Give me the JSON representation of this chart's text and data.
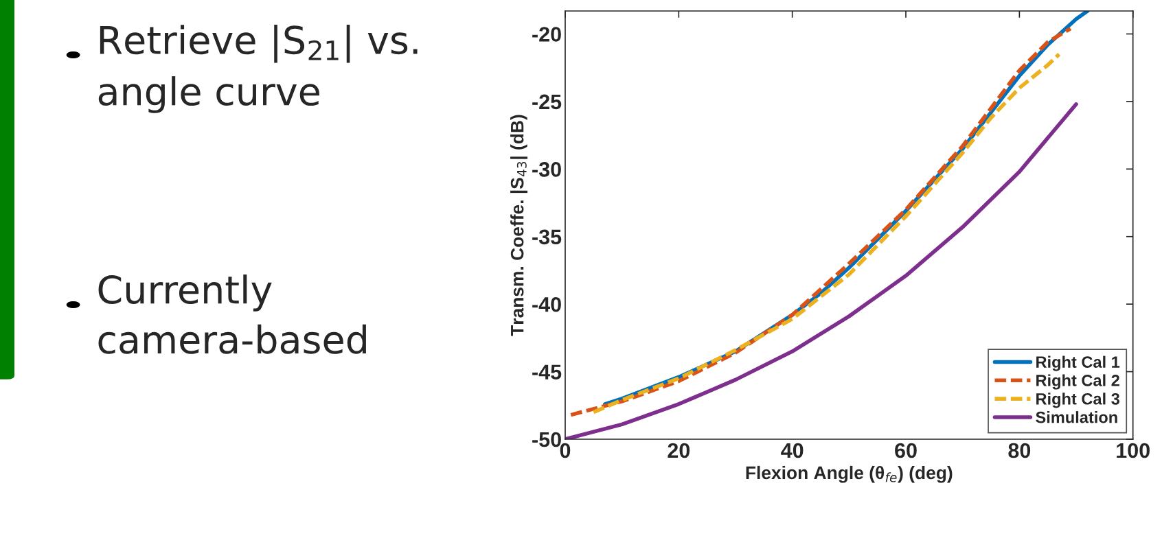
{
  "chart_data": {
    "type": "line",
    "xlabel": "Flexion Angle (θ$_{fe}$) (deg)",
    "ylabel": "Transm. Coeffe. |S$_{43}$| (dB)",
    "xlim": [
      0,
      100
    ],
    "xticks": [
      0,
      20,
      40,
      60,
      80,
      100
    ],
    "ylim": [
      -50,
      -18.3
    ],
    "yticks": [
      -50,
      -45,
      -40,
      -35,
      -30,
      -25,
      -20
    ],
    "grid": false,
    "legend": "bottom right",
    "marker": "none",
    "annotations": [
      "Retrieve |S$_{21}$| vs. angle curve",
      "Currently camera-based"
    ],
    "series": [
      {
        "name": "Right Cal 1",
        "color": "#0072bd",
        "line_style": "solid",
        "x": [
          7,
          10,
          20,
          30,
          40,
          45,
          50,
          55,
          60,
          65,
          70,
          75,
          80,
          85,
          90,
          92
        ],
        "values": [
          -47.4,
          -47.0,
          -45.4,
          -43.5,
          -40.8,
          -39.2,
          -37.3,
          -35.2,
          -33.1,
          -30.8,
          -28.5,
          -25.8,
          -23.1,
          -20.8,
          -18.9,
          -18.3
        ]
      },
      {
        "name": "Right Cal 2",
        "color": "#d95319",
        "line_style": "dashed",
        "x": [
          1,
          10,
          20,
          30,
          40,
          50,
          60,
          70,
          75,
          80,
          85,
          89
        ],
        "values": [
          -48.2,
          -47.2,
          -45.7,
          -43.6,
          -40.8,
          -37.0,
          -33.0,
          -28.3,
          -25.5,
          -22.7,
          -20.6,
          -19.6
        ]
      },
      {
        "name": "Right Cal 3",
        "color": "#edb120",
        "line_style": "dashed",
        "x": [
          5,
          10,
          20,
          30,
          40,
          50,
          60,
          70,
          75,
          80,
          85,
          87
        ],
        "values": [
          -48.0,
          -47.1,
          -45.5,
          -43.4,
          -41.1,
          -37.8,
          -33.5,
          -28.8,
          -26.2,
          -24.0,
          -22.3,
          -21.5
        ]
      },
      {
        "name": "Simulation",
        "color": "#7e2f8e",
        "line_style": "solid",
        "x": [
          0,
          10,
          20,
          30,
          40,
          50,
          60,
          70,
          80,
          90
        ],
        "values": [
          -50.0,
          -48.9,
          -47.4,
          -45.6,
          -43.5,
          -40.9,
          -37.9,
          -34.3,
          -30.2,
          -25.2
        ]
      }
    ]
  }
}
